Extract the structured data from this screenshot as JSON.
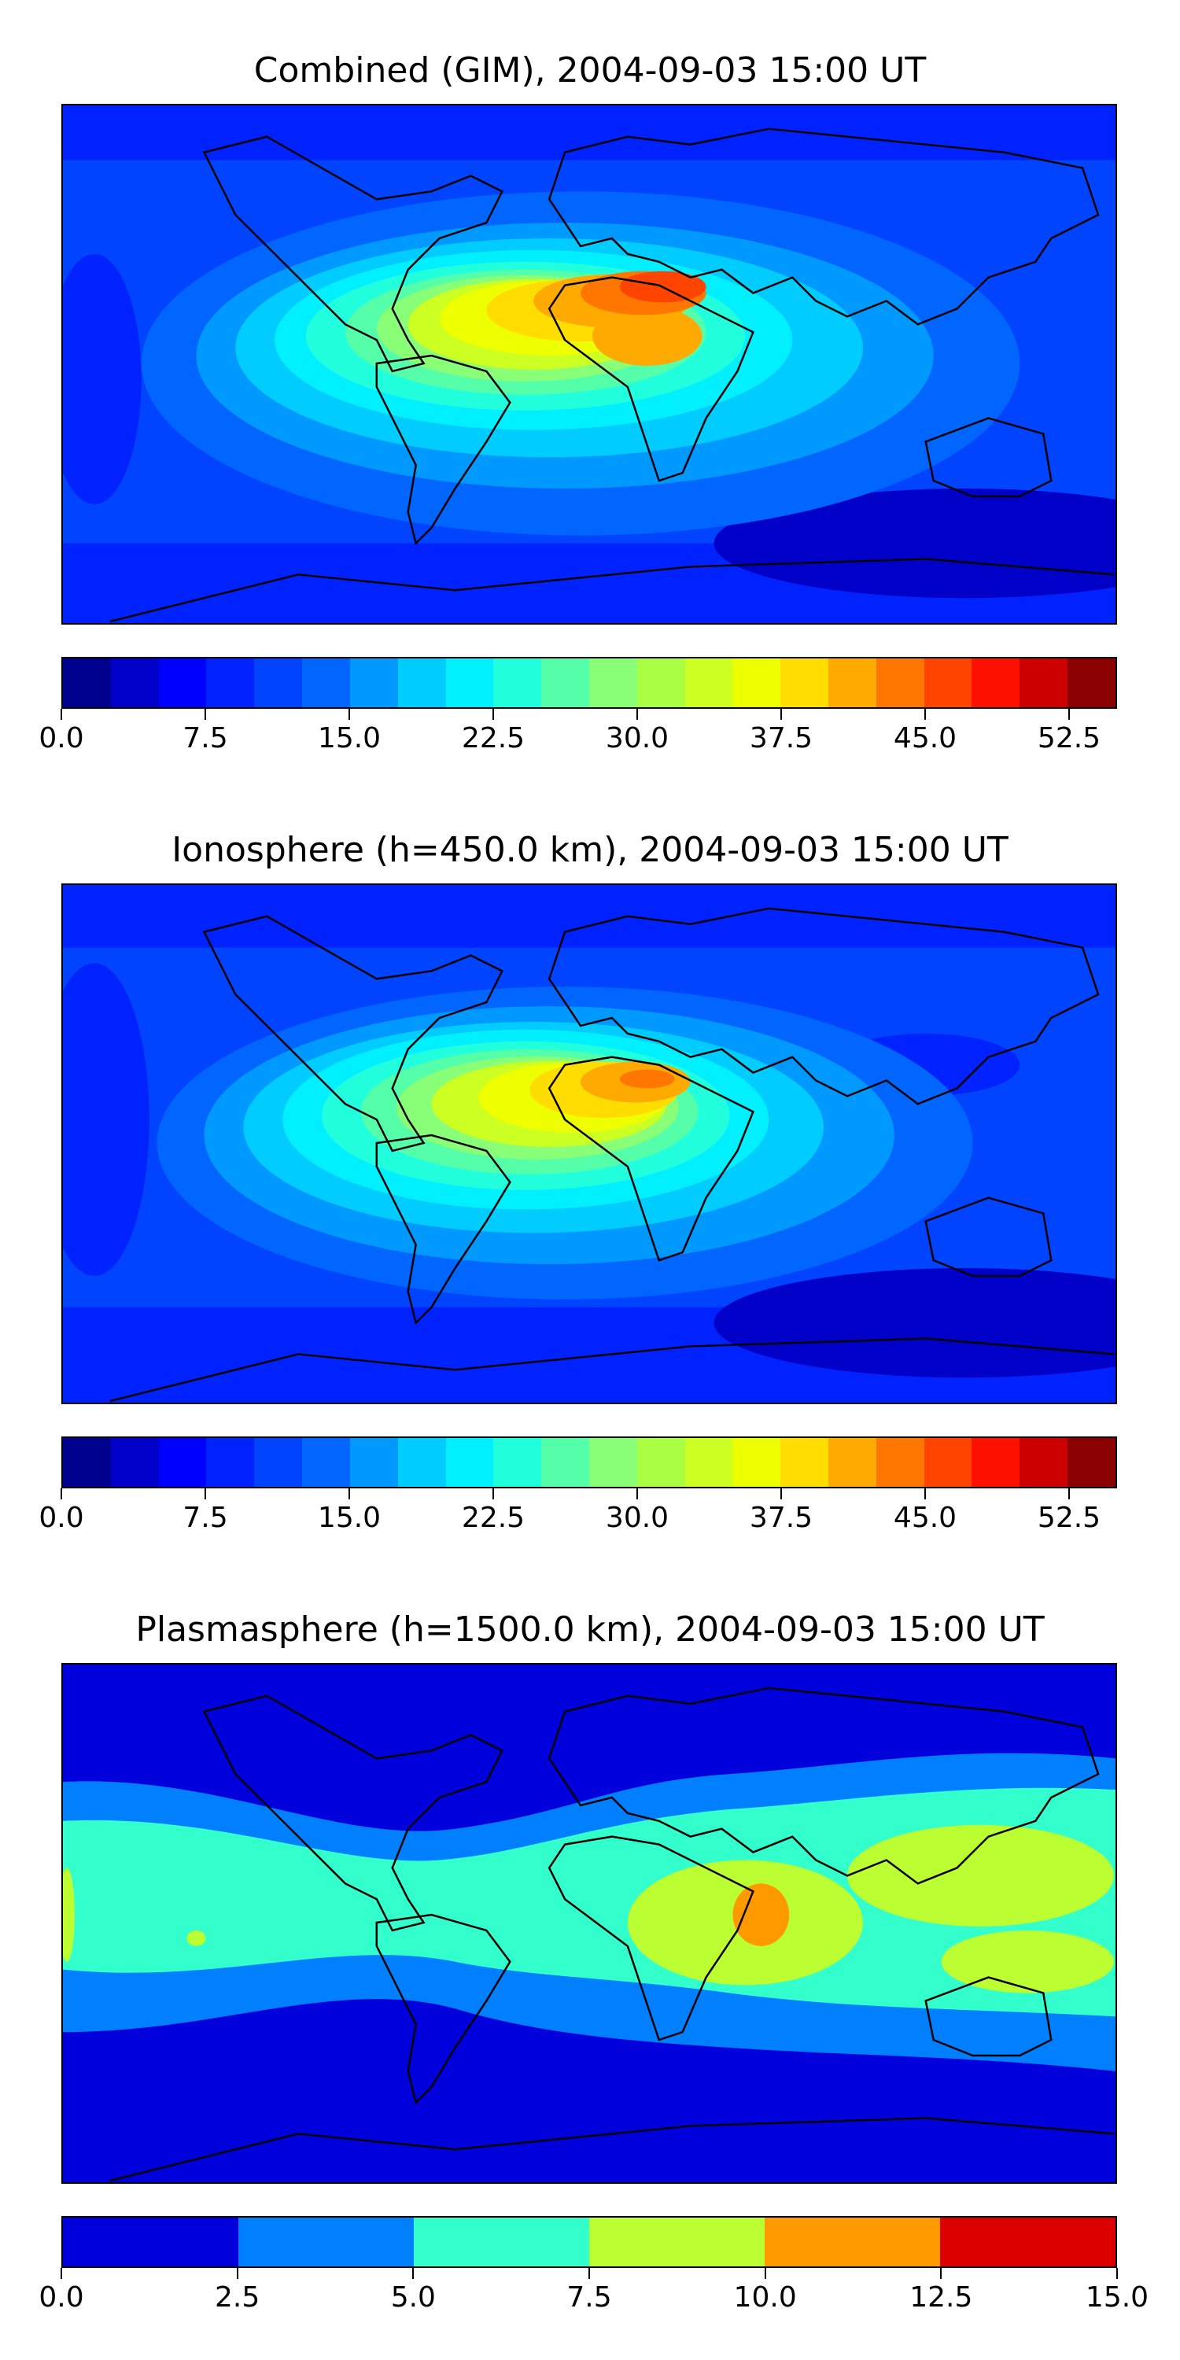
{
  "maps": [
    {
      "title": "Combined (GIM), 2004-09-03 15:00 UT",
      "colorbar": {
        "min": 0.0,
        "max": 55.0,
        "colors": [
          "#00008f",
          "#0000c8",
          "#0000ff",
          "#0022ff",
          "#0044ff",
          "#0066ff",
          "#0099ff",
          "#00ccff",
          "#00f0ff",
          "#22ffdd",
          "#55ffaa",
          "#88ff77",
          "#aaff44",
          "#ccff22",
          "#eeff00",
          "#ffdd00",
          "#ffaa00",
          "#ff7700",
          "#ff4400",
          "#ff1100",
          "#cc0000",
          "#8b0000"
        ],
        "tick_labels": [
          "0.0",
          "7.5",
          "15.0",
          "22.5",
          "30.0",
          "37.5",
          "45.0",
          "52.5"
        ],
        "tick_values": [
          0.0,
          7.5,
          15.0,
          22.5,
          30.0,
          37.5,
          45.0,
          52.5
        ]
      },
      "background": "#0030ff"
    },
    {
      "title": "Ionosphere  (h=450.0 km), 2004-09-03 15:00 UT",
      "colorbar": {
        "min": 0.0,
        "max": 55.0,
        "colors": [
          "#00008f",
          "#0000c8",
          "#0000ff",
          "#0022ff",
          "#0044ff",
          "#0066ff",
          "#0099ff",
          "#00ccff",
          "#00f0ff",
          "#22ffdd",
          "#55ffaa",
          "#88ff77",
          "#aaff44",
          "#ccff22",
          "#eeff00",
          "#ffdd00",
          "#ffaa00",
          "#ff7700",
          "#ff4400",
          "#ff1100",
          "#cc0000",
          "#8b0000"
        ],
        "tick_labels": [
          "0.0",
          "7.5",
          "15.0",
          "22.5",
          "30.0",
          "37.5",
          "45.0",
          "52.5"
        ],
        "tick_values": [
          0.0,
          7.5,
          15.0,
          22.5,
          30.0,
          37.5,
          45.0,
          52.5
        ]
      },
      "background": "#0028e8"
    },
    {
      "title": "Plasmasphere (h=1500.0 km), 2004-09-03 15:00 UT",
      "colorbar": {
        "min": 0.0,
        "max": 15.0,
        "colors": [
          "#0000dd",
          "#0080ff",
          "#33ffcc",
          "#bbff33",
          "#ff9900",
          "#dd0000"
        ],
        "tick_labels": [
          "0.0",
          "2.5",
          "5.0",
          "7.5",
          "10.0",
          "12.5",
          "15.0"
        ],
        "tick_values": [
          0.0,
          2.5,
          5.0,
          7.5,
          10.0,
          12.5,
          15.0
        ]
      },
      "background": "#0000dd"
    }
  ]
}
